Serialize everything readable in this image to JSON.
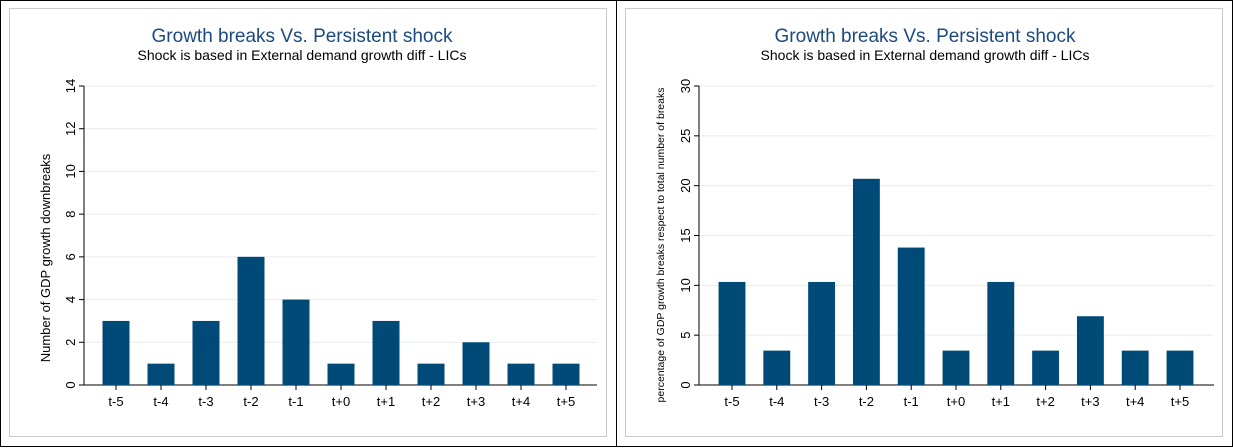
{
  "chart_data": [
    {
      "type": "bar",
      "title": "Growth breaks  Vs. Persistent shock",
      "subtitle": "Shock is based in External demand growth diff - LICs",
      "xlabel": "",
      "ylabel": "Number of GDP growth downbreaks",
      "categories": [
        "t-5",
        "t-4",
        "t-3",
        "t-2",
        "t-1",
        "t+0",
        "t+1",
        "t+2",
        "t+3",
        "t+4",
        "t+5"
      ],
      "values": [
        3,
        1,
        3,
        6,
        4,
        1,
        3,
        1,
        2,
        1,
        1
      ],
      "ylim": [
        0,
        14
      ],
      "yticks": [
        "0",
        "2",
        "4",
        "6",
        "8",
        "10",
        "12",
        "14"
      ],
      "grid": true,
      "bar_color": "#004a78"
    },
    {
      "type": "bar",
      "title": "Growth breaks  Vs. Persistent shock",
      "subtitle": "Shock is based in External demand growth diff - LICs",
      "xlabel": "",
      "ylabel": "percentage of GDP growth breaks respect to total number of breaks",
      "categories": [
        "t-5",
        "t-4",
        "t-3",
        "t-2",
        "t-1",
        "t+0",
        "t+1",
        "t+2",
        "t+3",
        "t+4",
        "t+5"
      ],
      "values": [
        10.34,
        3.45,
        10.34,
        20.69,
        13.79,
        3.45,
        10.34,
        3.45,
        6.9,
        3.45,
        3.45
      ],
      "ylim": [
        0,
        30
      ],
      "yticks": [
        "0",
        "5",
        "10",
        "15",
        "20",
        "25",
        "30"
      ],
      "grid": true,
      "bar_color": "#004a78"
    }
  ]
}
